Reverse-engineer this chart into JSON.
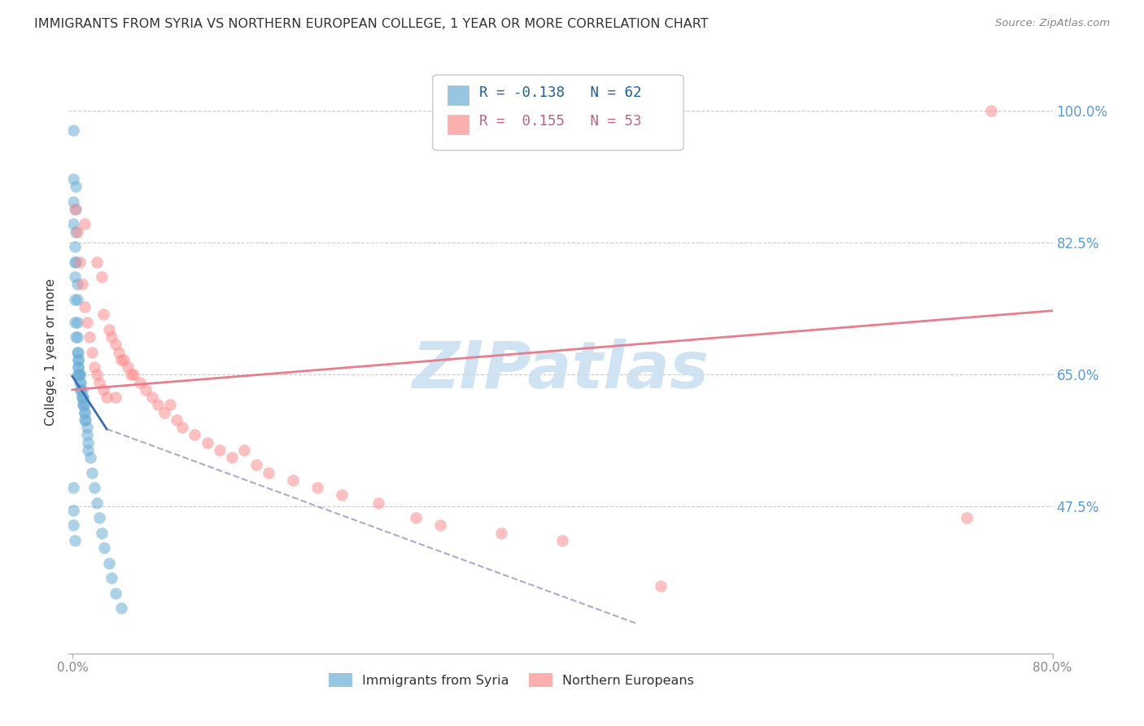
{
  "title": "IMMIGRANTS FROM SYRIA VS NORTHERN EUROPEAN COLLEGE, 1 YEAR OR MORE CORRELATION CHART",
  "source": "Source: ZipAtlas.com",
  "ylabel": "College, 1 year or more",
  "xlim": [
    -0.003,
    0.8
  ],
  "ylim": [
    0.28,
    1.08
  ],
  "ytick_positions": [
    0.475,
    0.65,
    0.825,
    1.0
  ],
  "ytick_labels": [
    "47.5%",
    "65.0%",
    "82.5%",
    "100.0%"
  ],
  "grid_color": "#cccccc",
  "background_color": "#ffffff",
  "legend_R1": "-0.138",
  "legend_N1": "62",
  "legend_R2": "0.155",
  "legend_N2": "53",
  "legend_label1": "Immigrants from Syria",
  "legend_label2": "Northern Europeans",
  "color_blue": "#6baed6",
  "color_pink": "#fc8d8d",
  "trendline_blue": "#3a6db5",
  "trendline_pink": "#e87d8d",
  "trendline_dashed": "#aaaacc",
  "watermark": "ZIPatlas",
  "watermark_color": "#c8dff0",
  "syria_x": [
    0.001,
    0.001,
    0.001,
    0.001,
    0.002,
    0.002,
    0.002,
    0.002,
    0.002,
    0.003,
    0.003,
    0.003,
    0.003,
    0.003,
    0.004,
    0.004,
    0.004,
    0.004,
    0.004,
    0.005,
    0.005,
    0.005,
    0.005,
    0.005,
    0.005,
    0.005,
    0.006,
    0.006,
    0.006,
    0.007,
    0.007,
    0.007,
    0.008,
    0.008,
    0.008,
    0.009,
    0.009,
    0.009,
    0.01,
    0.01,
    0.01,
    0.01,
    0.011,
    0.012,
    0.012,
    0.013,
    0.013,
    0.015,
    0.016,
    0.018,
    0.02,
    0.022,
    0.024,
    0.026,
    0.03,
    0.032,
    0.035,
    0.04,
    0.001,
    0.001,
    0.001,
    0.002
  ],
  "syria_y": [
    0.975,
    0.91,
    0.88,
    0.85,
    0.82,
    0.8,
    0.78,
    0.75,
    0.72,
    0.7,
    0.9,
    0.87,
    0.84,
    0.8,
    0.77,
    0.75,
    0.72,
    0.7,
    0.68,
    0.68,
    0.67,
    0.67,
    0.66,
    0.66,
    0.65,
    0.65,
    0.65,
    0.65,
    0.64,
    0.64,
    0.63,
    0.63,
    0.63,
    0.62,
    0.62,
    0.62,
    0.61,
    0.61,
    0.61,
    0.6,
    0.6,
    0.59,
    0.59,
    0.58,
    0.57,
    0.56,
    0.55,
    0.54,
    0.52,
    0.5,
    0.48,
    0.46,
    0.44,
    0.42,
    0.4,
    0.38,
    0.36,
    0.34,
    0.5,
    0.47,
    0.45,
    0.43
  ],
  "northern_x": [
    0.002,
    0.004,
    0.006,
    0.008,
    0.01,
    0.01,
    0.012,
    0.014,
    0.016,
    0.018,
    0.02,
    0.02,
    0.022,
    0.024,
    0.025,
    0.025,
    0.028,
    0.03,
    0.032,
    0.035,
    0.035,
    0.038,
    0.04,
    0.042,
    0.045,
    0.048,
    0.05,
    0.055,
    0.06,
    0.065,
    0.07,
    0.075,
    0.08,
    0.085,
    0.09,
    0.1,
    0.11,
    0.12,
    0.13,
    0.14,
    0.15,
    0.16,
    0.18,
    0.2,
    0.22,
    0.25,
    0.28,
    0.3,
    0.35,
    0.4,
    0.48,
    0.73,
    0.75
  ],
  "northern_y": [
    0.87,
    0.84,
    0.8,
    0.77,
    0.74,
    0.85,
    0.72,
    0.7,
    0.68,
    0.66,
    0.8,
    0.65,
    0.64,
    0.78,
    0.63,
    0.73,
    0.62,
    0.71,
    0.7,
    0.69,
    0.62,
    0.68,
    0.67,
    0.67,
    0.66,
    0.65,
    0.65,
    0.64,
    0.63,
    0.62,
    0.61,
    0.6,
    0.61,
    0.59,
    0.58,
    0.57,
    0.56,
    0.55,
    0.54,
    0.55,
    0.53,
    0.52,
    0.51,
    0.5,
    0.49,
    0.48,
    0.46,
    0.45,
    0.44,
    0.43,
    0.37,
    0.46,
    1.0
  ],
  "blue_line_x": [
    0.0,
    0.028
  ],
  "blue_line_y": [
    0.648,
    0.578
  ],
  "dashed_line_x": [
    0.028,
    0.46
  ],
  "dashed_line_y": [
    0.578,
    0.32
  ],
  "pink_line_x": [
    0.0,
    0.8
  ],
  "pink_line_y": [
    0.63,
    0.735
  ]
}
